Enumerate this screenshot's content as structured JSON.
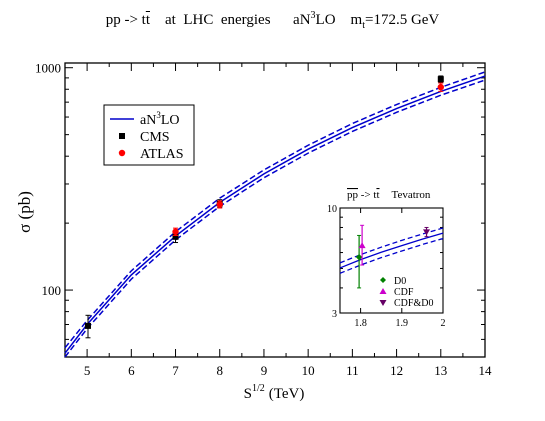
{
  "title": {
    "process": "pp -> t",
    "tbar": "t",
    "energies": "at  LHC  energies",
    "order_prefix": "aN",
    "order_sup": "3",
    "order_suffix": "LO",
    "mass_prefix": "m",
    "mass_sub": "t",
    "mass_value": "=172.5 GeV"
  },
  "chart_data": [
    {
      "type": "line",
      "xlabel_main": "S",
      "xlabel_sup": "1/2",
      "xlabel_unit": "(TeV)",
      "ylabel": "σ (pb)",
      "xlim": [
        4.5,
        14
      ],
      "ylim": [
        50,
        1050
      ],
      "yscale": "log",
      "xticks": [
        5,
        6,
        7,
        8,
        9,
        10,
        11,
        12,
        13,
        14
      ],
      "yticks": [
        100,
        1000
      ],
      "grid": false,
      "legend_position": "top-left",
      "legend": [
        {
          "label_main": "aN",
          "label_sup": "3",
          "label_suffix": "LO",
          "marker": "line",
          "color": "#0000cc"
        },
        {
          "label": "CMS",
          "marker": "square",
          "color": "#000000"
        },
        {
          "label": "ATLAS",
          "marker": "circle",
          "color": "#ff0000"
        }
      ],
      "theory": {
        "x": [
          4.5,
          5,
          6,
          7,
          8,
          9,
          10,
          11,
          12,
          13,
          14
        ],
        "central": [
          52,
          70,
          117,
          175,
          248,
          333,
          430,
          538,
          655,
          782,
          917
        ],
        "upper": [
          55,
          73,
          122,
          183,
          259,
          347,
          448,
          561,
          683,
          816,
          957
        ],
        "lower": [
          50,
          67,
          112,
          168,
          238,
          320,
          413,
          517,
          630,
          752,
          880
        ],
        "color": "#0000cc"
      },
      "series": [
        {
          "name": "CMS",
          "color": "#000000",
          "marker": "square",
          "points": [
            {
              "x": 5.02,
              "y": 69,
              "err": 8
            },
            {
              "x": 7,
              "y": 173.6,
              "err": 10
            },
            {
              "x": 8,
              "y": 244.9,
              "err": 10
            },
            {
              "x": 13,
              "y": 888,
              "err": 30
            }
          ]
        },
        {
          "name": "ATLAS",
          "color": "#ff0000",
          "marker": "circle",
          "points": [
            {
              "x": 7,
              "y": 182.9,
              "err": 7
            },
            {
              "x": 8,
              "y": 242.9,
              "err": 9
            },
            {
              "x": 13,
              "y": 818,
              "err": 35
            }
          ]
        }
      ]
    },
    {
      "type": "line",
      "title_prefix": "pp",
      "title_arrow": " -> t",
      "title_tbar": "t",
      "title_suffix": "Tevatron",
      "xlim": [
        1.75,
        2.0
      ],
      "ylim": [
        3,
        10
      ],
      "yscale": "log",
      "xticks": [
        1.8,
        1.9,
        2
      ],
      "xtick_labels": [
        "1.8",
        "1.9",
        "2"
      ],
      "yticks": [
        3,
        10
      ],
      "theory": {
        "x": [
          1.75,
          1.8,
          1.85,
          1.9,
          1.95,
          2.0
        ],
        "central": [
          5.03,
          5.53,
          6.02,
          6.5,
          7.0,
          7.5
        ],
        "upper": [
          5.33,
          5.86,
          6.38,
          6.9,
          7.42,
          7.95
        ],
        "lower": [
          4.73,
          5.2,
          5.66,
          6.11,
          6.58,
          7.05
        ],
        "color": "#0000cc"
      },
      "series": [
        {
          "name": "D0",
          "color": "#008000",
          "marker": "diamond",
          "points": [
            {
              "x": 1.8,
              "y": 5.69,
              "lo": 4.0,
              "hi": 7.3
            }
          ]
        },
        {
          "name": "CDF",
          "color": "#cc00cc",
          "marker": "triangle-up",
          "points": [
            {
              "x": 1.8,
              "y": 6.5,
              "lo": 5.2,
              "hi": 8.2
            }
          ]
        },
        {
          "name": "CDF&D0",
          "color": "#660066",
          "marker": "triangle-down",
          "points": [
            {
              "x": 1.96,
              "y": 7.6,
              "lo": 7.2,
              "hi": 8.0
            }
          ]
        }
      ]
    }
  ]
}
